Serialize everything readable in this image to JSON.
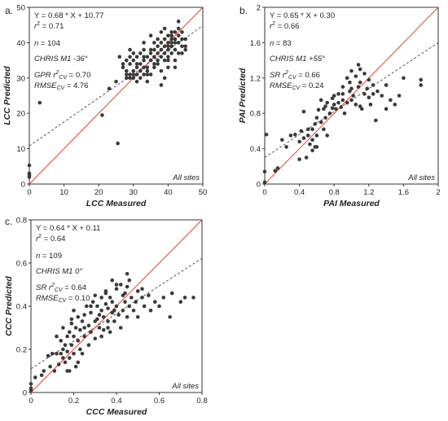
{
  "chart_data": [
    {
      "type": "scatter",
      "panel_label": "a.",
      "xlabel": "LCC Measured",
      "ylabel": "LCC Predicted",
      "xlim": [
        0,
        50
      ],
      "ylim": [
        0,
        50
      ],
      "xticks": [
        "0",
        "10",
        "20",
        "30",
        "40",
        "50"
      ],
      "yticks": [
        "0",
        "10",
        "20",
        "30",
        "40",
        "50"
      ],
      "equation": "Y = 0.68 * X + 10.77",
      "r2_value": "= 0.71",
      "n_value": "= 104",
      "sensor": "CHRIS M1 -36°",
      "cv_method": "GPR",
      "cv_r2": "= 0.70",
      "cv_rmse": "= 4.76",
      "site_label": "All sites",
      "one_to_one": true,
      "regression": {
        "slope": 0.68,
        "intercept": 10.77
      },
      "point_color": "#3a3a3a",
      "line_color": "#e8412b",
      "points": [
        [
          0,
          2
        ],
        [
          0,
          2.5
        ],
        [
          0,
          3
        ],
        [
          0,
          5.3
        ],
        [
          3,
          23
        ],
        [
          21,
          19.5
        ],
        [
          25.5,
          11.5
        ],
        [
          23,
          27
        ],
        [
          25,
          29
        ],
        [
          26,
          36
        ],
        [
          27,
          34
        ],
        [
          27,
          33
        ],
        [
          28,
          31
        ],
        [
          28,
          30
        ],
        [
          28,
          32
        ],
        [
          29,
          31
        ],
        [
          29,
          34
        ],
        [
          29,
          30
        ],
        [
          29,
          38
        ],
        [
          30,
          30
        ],
        [
          30,
          32
        ],
        [
          30,
          35
        ],
        [
          30,
          31
        ],
        [
          31,
          33
        ],
        [
          31,
          36
        ],
        [
          31,
          29
        ],
        [
          31,
          31
        ],
        [
          32,
          34
        ],
        [
          32,
          37
        ],
        [
          32,
          30
        ],
        [
          33,
          33
        ],
        [
          33,
          35
        ],
        [
          33,
          38
        ],
        [
          33,
          31
        ],
        [
          33,
          40
        ],
        [
          34,
          32
        ],
        [
          34,
          36
        ],
        [
          34,
          29
        ],
        [
          34,
          33
        ],
        [
          35,
          35
        ],
        [
          35,
          38
        ],
        [
          35,
          42
        ],
        [
          35,
          31
        ],
        [
          36,
          36
        ],
        [
          36,
          33
        ],
        [
          36,
          40
        ],
        [
          36,
          38
        ],
        [
          37,
          37
        ],
        [
          37,
          35
        ],
        [
          37,
          34
        ],
        [
          37,
          39
        ],
        [
          37,
          41
        ],
        [
          38,
          28
        ],
        [
          38,
          32
        ],
        [
          38,
          36
        ],
        [
          38,
          38
        ],
        [
          38,
          40
        ],
        [
          38,
          43
        ],
        [
          39,
          37
        ],
        [
          39,
          35
        ],
        [
          39,
          39
        ],
        [
          39,
          30
        ],
        [
          39,
          41
        ],
        [
          39,
          44
        ],
        [
          40,
          36
        ],
        [
          40,
          38
        ],
        [
          40,
          39
        ],
        [
          40,
          40
        ],
        [
          40,
          33
        ],
        [
          40,
          42
        ],
        [
          41,
          42
        ],
        [
          41,
          37
        ],
        [
          41,
          39
        ],
        [
          41,
          40
        ],
        [
          41,
          41
        ],
        [
          41,
          43
        ],
        [
          42,
          43
        ],
        [
          42,
          38
        ],
        [
          42,
          35
        ],
        [
          42,
          40
        ],
        [
          42,
          41
        ],
        [
          43,
          40
        ],
        [
          43,
          42
        ],
        [
          43,
          37
        ],
        [
          43,
          46
        ],
        [
          43,
          44
        ],
        [
          44,
          39
        ],
        [
          44,
          43
        ],
        [
          44,
          41
        ],
        [
          44,
          37
        ],
        [
          45,
          41
        ],
        [
          45,
          39
        ],
        [
          45,
          38
        ],
        [
          36,
          34
        ],
        [
          35,
          37
        ],
        [
          34,
          31
        ],
        [
          33,
          36
        ],
        [
          32,
          32
        ],
        [
          31,
          34
        ],
        [
          30,
          37
        ],
        [
          29,
          36
        ],
        [
          28,
          35
        ],
        [
          42,
          33
        ],
        [
          40,
          35
        ]
      ]
    },
    {
      "type": "scatter",
      "panel_label": "b.",
      "xlabel": "PAI Measured",
      "ylabel": "PAI Predicted",
      "xlim": [
        0,
        2
      ],
      "ylim": [
        0,
        2
      ],
      "xticks": [
        "0",
        "0.4",
        "0.8",
        "1.2",
        "1.6",
        "2"
      ],
      "yticks": [
        "0",
        "0.4",
        "0.8",
        "1.2",
        "1.6",
        "2"
      ],
      "equation": "Y = 0.65 * X + 0.30",
      "r2_value": "= 0.66",
      "n_value": "= 83",
      "sensor": "CHRIS M1 +55°",
      "cv_method": "SR",
      "cv_r2": "= 0.66",
      "cv_rmse": "= 0.24",
      "site_label": "All sites",
      "one_to_one": true,
      "regression": {
        "slope": 0.65,
        "intercept": 0.3
      },
      "point_color": "#3a3a3a",
      "line_color": "#e8412b",
      "points": [
        [
          0,
          0.02
        ],
        [
          0,
          0.14
        ],
        [
          0.02,
          0.56
        ],
        [
          0.12,
          0.15
        ],
        [
          0.15,
          0.18
        ],
        [
          0.2,
          0.5
        ],
        [
          0.25,
          0.42
        ],
        [
          0.3,
          0.55
        ],
        [
          0.35,
          0.56
        ],
        [
          0.4,
          0.48
        ],
        [
          0.42,
          0.6
        ],
        [
          0.45,
          0.52
        ],
        [
          0.45,
          0.82
        ],
        [
          0.48,
          0.3
        ],
        [
          0.5,
          0.62
        ],
        [
          0.5,
          0.55
        ],
        [
          0.52,
          0.45
        ],
        [
          0.55,
          0.38
        ],
        [
          0.55,
          0.5
        ],
        [
          0.58,
          0.42
        ],
        [
          0.58,
          0.68
        ],
        [
          0.6,
          0.75
        ],
        [
          0.6,
          0.55
        ],
        [
          0.62,
          0.84
        ],
        [
          0.65,
          0.7
        ],
        [
          0.65,
          0.95
        ],
        [
          0.68,
          0.85
        ],
        [
          0.7,
          0.75
        ],
        [
          0.7,
          0.88
        ],
        [
          0.72,
          0.92
        ],
        [
          0.75,
          0.8
        ],
        [
          0.78,
          0.97
        ],
        [
          0.8,
          0.9
        ],
        [
          0.8,
          1.0
        ],
        [
          0.82,
          0.85
        ],
        [
          0.85,
          0.92
        ],
        [
          0.85,
          1.02
        ],
        [
          0.88,
          0.87
        ],
        [
          0.9,
          0.95
        ],
        [
          0.9,
          1.1
        ],
        [
          0.92,
          0.8
        ],
        [
          0.95,
          0.92
        ],
        [
          0.95,
          1.2
        ],
        [
          0.98,
          1.05
        ],
        [
          1.0,
          0.95
        ],
        [
          1.0,
          1.28
        ],
        [
          1.02,
          1.0
        ],
        [
          1.05,
          0.9
        ],
        [
          1.05,
          1.22
        ],
        [
          1.08,
          1.1
        ],
        [
          1.1,
          0.88
        ],
        [
          1.1,
          1.15
        ],
        [
          1.12,
          0.85
        ],
        [
          1.15,
          1.02
        ],
        [
          1.15,
          1.25
        ],
        [
          1.18,
          1.08
        ],
        [
          1.2,
          0.98
        ],
        [
          1.2,
          1.18
        ],
        [
          1.22,
          0.9
        ],
        [
          1.25,
          1.12
        ],
        [
          1.25,
          1.02
        ],
        [
          1.28,
          0.72
        ],
        [
          1.3,
          1.05
        ],
        [
          1.35,
          1.0
        ],
        [
          1.4,
          1.12
        ],
        [
          1.4,
          0.85
        ],
        [
          1.45,
          0.95
        ],
        [
          1.5,
          0.9
        ],
        [
          1.55,
          1.0
        ],
        [
          1.6,
          1.2
        ],
        [
          1.8,
          1.18
        ],
        [
          1.8,
          1.12
        ],
        [
          1.08,
          1.35
        ],
        [
          1.1,
          1.3
        ],
        [
          0.98,
          1.15
        ],
        [
          0.78,
          0.86
        ],
        [
          0.68,
          0.62
        ],
        [
          0.72,
          0.55
        ],
        [
          0.55,
          0.62
        ],
        [
          0.6,
          0.42
        ],
        [
          0.4,
          0.28
        ],
        [
          1.0,
          1.08
        ],
        [
          0.9,
          1.02
        ]
      ]
    },
    {
      "type": "scatter",
      "panel_label": "c.",
      "xlabel": "CCC Measured",
      "ylabel": "CCC Predicted",
      "xlim": [
        0,
        0.8
      ],
      "ylim": [
        0,
        0.8
      ],
      "xticks": [
        "0",
        "0.2",
        "0.4",
        "0.6",
        "0.8"
      ],
      "yticks": [
        "0",
        "0.2",
        "0.4",
        "0.6",
        "0.8"
      ],
      "equation": "Y = 0.64 * X + 0.11",
      "r2_value": "= 0.64",
      "n_value": "= 109",
      "sensor": "CHRIS M1 0°",
      "cv_method": "SR",
      "cv_r2": "= 0.64",
      "cv_rmse": "= 0.10",
      "site_label": "All sites",
      "one_to_one": true,
      "regression": {
        "slope": 0.64,
        "intercept": 0.11
      },
      "point_color": "#3a3a3a",
      "line_color": "#e8412b",
      "points": [
        [
          0,
          0.02
        ],
        [
          0,
          0.04
        ],
        [
          0,
          0.01
        ],
        [
          0.02,
          0.07
        ],
        [
          0.05,
          0.08
        ],
        [
          0.06,
          0.1
        ],
        [
          0.08,
          0.17
        ],
        [
          0.1,
          0.18
        ],
        [
          0.12,
          0.18
        ],
        [
          0.12,
          0.26
        ],
        [
          0.14,
          0.18
        ],
        [
          0.14,
          0.24
        ],
        [
          0.15,
          0.2
        ],
        [
          0.15,
          0.3
        ],
        [
          0.16,
          0.22
        ],
        [
          0.16,
          0.14
        ],
        [
          0.17,
          0.19
        ],
        [
          0.17,
          0.26
        ],
        [
          0.18,
          0.16
        ],
        [
          0.18,
          0.28
        ],
        [
          0.18,
          0.1
        ],
        [
          0.19,
          0.22
        ],
        [
          0.19,
          0.32
        ],
        [
          0.2,
          0.26
        ],
        [
          0.2,
          0.18
        ],
        [
          0.2,
          0.38
        ],
        [
          0.21,
          0.12
        ],
        [
          0.21,
          0.3
        ],
        [
          0.22,
          0.24
        ],
        [
          0.22,
          0.35
        ],
        [
          0.23,
          0.29
        ],
        [
          0.23,
          0.2
        ],
        [
          0.24,
          0.33
        ],
        [
          0.25,
          0.36
        ],
        [
          0.25,
          0.26
        ],
        [
          0.26,
          0.4
        ],
        [
          0.27,
          0.31
        ],
        [
          0.28,
          0.28
        ],
        [
          0.28,
          0.37
        ],
        [
          0.29,
          0.42
        ],
        [
          0.3,
          0.33
        ],
        [
          0.3,
          0.25
        ],
        [
          0.31,
          0.4
        ],
        [
          0.32,
          0.36
        ],
        [
          0.32,
          0.3
        ],
        [
          0.33,
          0.44
        ],
        [
          0.33,
          0.38
        ],
        [
          0.34,
          0.35
        ],
        [
          0.34,
          0.29
        ],
        [
          0.35,
          0.41
        ],
        [
          0.35,
          0.46
        ],
        [
          0.36,
          0.33
        ],
        [
          0.36,
          0.39
        ],
        [
          0.37,
          0.44
        ],
        [
          0.37,
          0.28
        ],
        [
          0.38,
          0.37
        ],
        [
          0.38,
          0.42
        ],
        [
          0.39,
          0.33
        ],
        [
          0.4,
          0.48
        ],
        [
          0.4,
          0.4
        ],
        [
          0.41,
          0.36
        ],
        [
          0.42,
          0.5
        ],
        [
          0.42,
          0.3
        ],
        [
          0.43,
          0.45
        ],
        [
          0.43,
          0.38
        ],
        [
          0.44,
          0.42
        ],
        [
          0.45,
          0.35
        ],
        [
          0.45,
          0.49
        ],
        [
          0.46,
          0.4
        ],
        [
          0.47,
          0.44
        ],
        [
          0.48,
          0.38
        ],
        [
          0.49,
          0.42
        ],
        [
          0.5,
          0.47
        ],
        [
          0.5,
          0.35
        ],
        [
          0.52,
          0.44
        ],
        [
          0.53,
          0.4
        ],
        [
          0.55,
          0.45
        ],
        [
          0.56,
          0.38
        ],
        [
          0.58,
          0.42
        ],
        [
          0.6,
          0.4
        ],
        [
          0.62,
          0.44
        ],
        [
          0.65,
          0.35
        ],
        [
          0.7,
          0.42
        ],
        [
          0.72,
          0.44
        ],
        [
          0.76,
          0.44
        ],
        [
          0.66,
          0.46
        ],
        [
          0.3,
          0.45
        ],
        [
          0.35,
          0.47
        ],
        [
          0.38,
          0.52
        ],
        [
          0.4,
          0.5
        ],
        [
          0.46,
          0.52
        ],
        [
          0.52,
          0.48
        ],
        [
          0.45,
          0.55
        ],
        [
          0.33,
          0.26
        ],
        [
          0.27,
          0.22
        ],
        [
          0.24,
          0.18
        ],
        [
          0.22,
          0.14
        ],
        [
          0.17,
          0.1
        ],
        [
          0.15,
          0.16
        ],
        [
          0.13,
          0.13
        ],
        [
          0.11,
          0.1
        ],
        [
          0.09,
          0.12
        ],
        [
          0.19,
          0.34
        ],
        [
          0.25,
          0.3
        ],
        [
          0.28,
          0.4
        ],
        [
          0.31,
          0.34
        ],
        [
          0.39,
          0.38
        ],
        [
          0.44,
          0.46
        ],
        [
          0.36,
          0.3
        ]
      ]
    }
  ]
}
